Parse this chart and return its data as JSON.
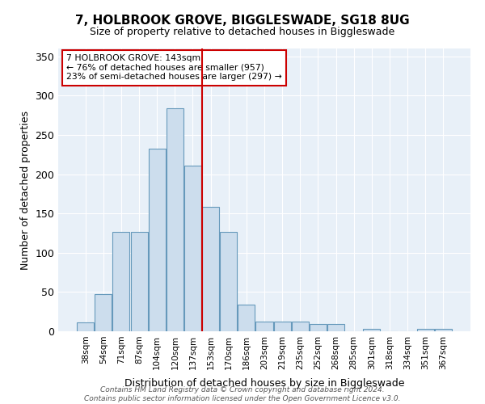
{
  "title": "7, HOLBROOK GROVE, BIGGLESWADE, SG18 8UG",
  "subtitle": "Size of property relative to detached houses in Biggleswade",
  "xlabel": "Distribution of detached houses by size in Biggleswade",
  "ylabel": "Number of detached properties",
  "bin_labels": [
    "38sqm",
    "54sqm",
    "71sqm",
    "87sqm",
    "104sqm",
    "120sqm",
    "137sqm",
    "153sqm",
    "170sqm",
    "186sqm",
    "203sqm",
    "219sqm",
    "235sqm",
    "252sqm",
    "268sqm",
    "285sqm",
    "301sqm",
    "318sqm",
    "334sqm",
    "351sqm",
    "367sqm"
  ],
  "bar_heights": [
    11,
    47,
    127,
    127,
    232,
    284,
    211,
    158,
    127,
    34,
    12,
    12,
    12,
    9,
    9,
    0,
    3,
    0,
    0,
    3,
    3
  ],
  "bar_color": "#ccdded",
  "bar_edge_color": "#6699bb",
  "vline_color": "#cc0000",
  "annotation_text": "7 HOLBROOK GROVE: 143sqm\n← 76% of detached houses are smaller (957)\n23% of semi-detached houses are larger (297) →",
  "annotation_box_color": "white",
  "annotation_box_edge": "#cc0000",
  "ylim": [
    0,
    360
  ],
  "yticks": [
    0,
    50,
    100,
    150,
    200,
    250,
    300,
    350
  ],
  "background_color": "#e8f0f8",
  "footer1": "Contains HM Land Registry data © Crown copyright and database right 2024.",
  "footer2": "Contains public sector information licensed under the Open Government Licence v3.0."
}
